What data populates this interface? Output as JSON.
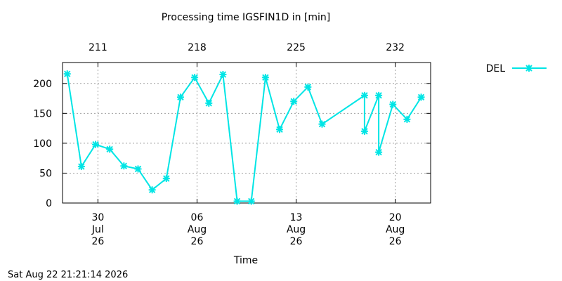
{
  "timestamp": "Sat Aug 22 21:21:14 2026",
  "chart_data": {
    "type": "line",
    "title": "Processing time IGSFIN1D in [min]",
    "xlabel": "Time",
    "ylabel": "",
    "ylim": [
      0,
      235
    ],
    "yticks": [
      0,
      50,
      100,
      150,
      200
    ],
    "xlim": [
      "2026-07-27T12:00",
      "2026-08-22T12:00"
    ],
    "bottom_ticks": [
      {
        "date": "2026-07-30",
        "day": "30",
        "month": "Jul",
        "year": "26"
      },
      {
        "date": "2026-08-06",
        "day": "06",
        "month": "Aug",
        "year": "26"
      },
      {
        "date": "2026-08-13",
        "day": "13",
        "month": "Aug",
        "year": "26"
      },
      {
        "date": "2026-08-20",
        "day": "20",
        "month": "Aug",
        "year": "26"
      }
    ],
    "top_ticks": [
      {
        "date": "2026-07-30",
        "label": "211"
      },
      {
        "date": "2026-08-06",
        "label": "218"
      },
      {
        "date": "2026-08-13",
        "label": "225"
      },
      {
        "date": "2026-08-20",
        "label": "232"
      }
    ],
    "grid": true,
    "legend_position": "top-right outside",
    "series": [
      {
        "name": "DEL",
        "color": "#00e5e5",
        "marker": "asterisk",
        "points": [
          [
            "2026-07-27T20:00",
            216
          ],
          [
            "2026-07-28T20:00",
            61
          ],
          [
            "2026-07-29T20:00",
            98
          ],
          [
            "2026-07-30T20:00",
            90
          ],
          [
            "2026-07-31T20:00",
            62
          ],
          [
            "2026-08-01T20:00",
            57
          ],
          [
            "2026-08-02T20:00",
            22
          ],
          [
            "2026-08-03T20:00",
            41
          ],
          [
            "2026-08-04T20:00",
            177
          ],
          [
            "2026-08-05T20:00",
            210
          ],
          [
            "2026-08-06T20:00",
            167
          ],
          [
            "2026-08-07T20:00",
            215
          ],
          [
            "2026-08-08T20:00",
            3
          ],
          [
            "2026-08-09T20:00",
            3
          ],
          [
            "2026-08-10T20:00",
            210
          ],
          [
            "2026-08-11T20:00",
            123
          ],
          [
            "2026-08-12T20:00",
            170
          ],
          [
            "2026-08-13T20:00",
            194
          ],
          [
            "2026-08-14T20:00",
            132
          ],
          [
            "2026-08-17T20:00",
            180
          ],
          [
            "2026-08-17T20:00",
            120
          ],
          [
            "2026-08-18T20:00",
            180
          ],
          [
            "2026-08-18T20:00",
            85
          ],
          [
            "2026-08-19T20:00",
            165
          ],
          [
            "2026-08-20T20:00",
            140
          ],
          [
            "2026-08-21T20:00",
            177
          ]
        ]
      }
    ]
  }
}
